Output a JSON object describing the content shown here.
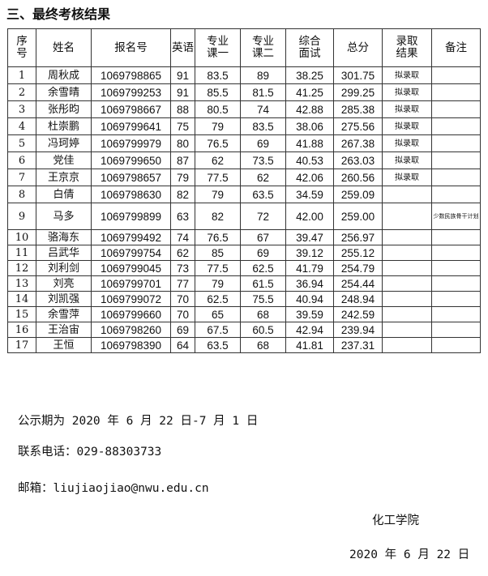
{
  "title": "三、最终考核结果",
  "table": {
    "headers": [
      "序号",
      "姓名",
      "报名号",
      "英语",
      "专业课一",
      "专业课二",
      "综合面试",
      "总分",
      "录取结果",
      "备注"
    ],
    "rows": [
      [
        "1",
        "周秋成",
        "1069798865",
        "91",
        "83.5",
        "89",
        "38.25",
        "301.75",
        "拟录取",
        ""
      ],
      [
        "2",
        "余雪晴",
        "1069799253",
        "91",
        "85.5",
        "81.5",
        "41.25",
        "299.25",
        "拟录取",
        ""
      ],
      [
        "3",
        "张彤昀",
        "1069798667",
        "88",
        "80.5",
        "74",
        "42.88",
        "285.38",
        "拟录取",
        ""
      ],
      [
        "4",
        "杜崇鹏",
        "1069799641",
        "75",
        "79",
        "83.5",
        "38.06",
        "275.56",
        "拟录取",
        ""
      ],
      [
        "5",
        "冯珂婷",
        "1069799979",
        "80",
        "76.5",
        "69",
        "41.88",
        "267.38",
        "拟录取",
        ""
      ],
      [
        "6",
        "党佳",
        "1069799650",
        "87",
        "62",
        "73.5",
        "40.53",
        "263.03",
        "拟录取",
        ""
      ],
      [
        "7",
        "王京京",
        "1069798657",
        "79",
        "77.5",
        "62",
        "42.06",
        "260.56",
        "拟录取",
        ""
      ],
      [
        "8",
        "白倩",
        "1069798630",
        "82",
        "79",
        "63.5",
        "34.59",
        "259.09",
        "",
        ""
      ],
      [
        "9",
        "马多",
        "1069799899",
        "63",
        "82",
        "72",
        "42.00",
        "259.00",
        "",
        "少数民族骨干计划"
      ],
      [
        "10",
        "骆海东",
        "1069799492",
        "74",
        "76.5",
        "67",
        "39.47",
        "256.97",
        "",
        ""
      ],
      [
        "11",
        "吕武华",
        "1069799754",
        "62",
        "85",
        "69",
        "39.12",
        "255.12",
        "",
        ""
      ],
      [
        "12",
        "刘利剑",
        "1069799045",
        "73",
        "77.5",
        "62.5",
        "41.79",
        "254.79",
        "",
        ""
      ],
      [
        "13",
        "刘亮",
        "1069799701",
        "77",
        "79",
        "61.5",
        "36.94",
        "254.44",
        "",
        ""
      ],
      [
        "14",
        "刘凯强",
        "1069799072",
        "70",
        "62.5",
        "75.5",
        "40.94",
        "248.94",
        "",
        ""
      ],
      [
        "15",
        "余雪萍",
        "1069799660",
        "70",
        "65",
        "68",
        "39.59",
        "242.59",
        "",
        ""
      ],
      [
        "16",
        "王治宙",
        "1069798260",
        "69",
        "67.5",
        "60.5",
        "42.94",
        "239.94",
        "",
        ""
      ],
      [
        "17",
        "王恒",
        "1069798390",
        "64",
        "63.5",
        "68",
        "41.81",
        "237.31",
        "",
        ""
      ]
    ]
  },
  "footer": {
    "period": "公示期为 2020 年 6 月 22 日-7 月 1 日",
    "phone": "联系电话：029-88303733",
    "email": "邮箱：liujiaojiao@nwu.edu.cn",
    "org": "化工学院",
    "date": "2020 年 6 月 22 日"
  }
}
